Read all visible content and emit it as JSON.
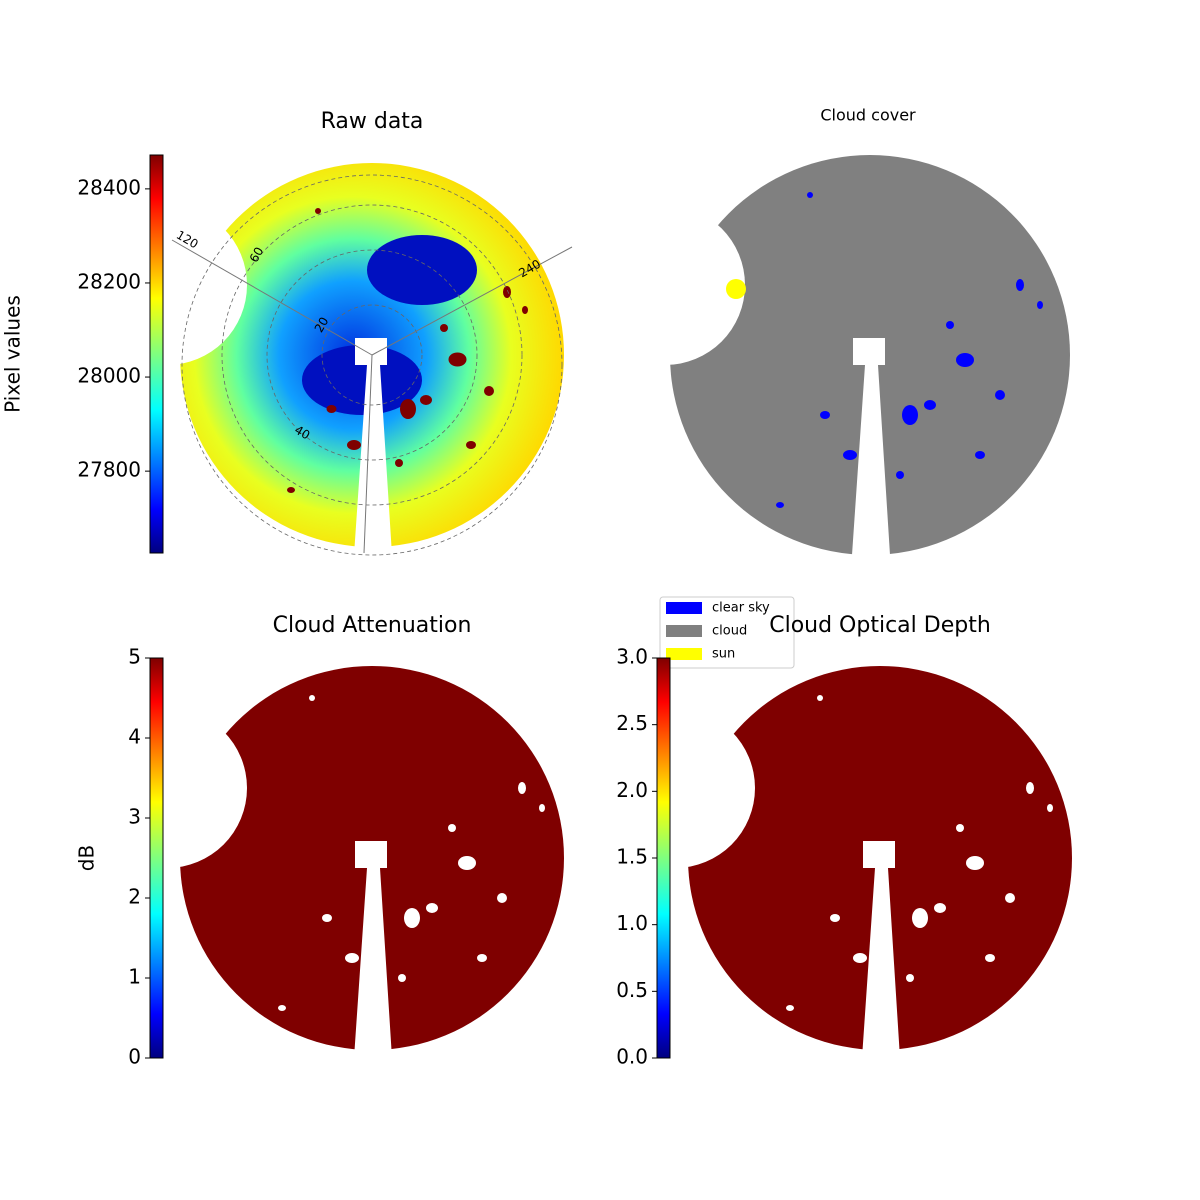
{
  "chart_data": [
    {
      "type": "image",
      "title": "Raw data",
      "colorbar": {
        "label": "Pixel values",
        "lim": [
          27626,
          28472
        ],
        "ticks": [
          27800,
          28000,
          28200,
          28400
        ],
        "cmap": "jet"
      },
      "annotations": [
        "120",
        "60",
        "240",
        "20",
        "40"
      ]
    },
    {
      "type": "image",
      "title": "Cloud cover",
      "series": [
        {
          "name": "clear sky",
          "color": "#0000ff"
        },
        {
          "name": "cloud",
          "color": "#808080"
        },
        {
          "name": "sun",
          "color": "#ffff00"
        }
      ]
    },
    {
      "type": "image",
      "title": "Cloud Attenuation",
      "colorbar": {
        "label": "dB",
        "lim": [
          0,
          5
        ],
        "ticks": [
          0,
          1,
          2,
          3,
          4,
          5
        ],
        "cmap": "jet"
      }
    },
    {
      "type": "image",
      "title": "Cloud Optical Depth",
      "colorbar": {
        "lim": [
          0,
          3
        ],
        "ticks": [
          {
            "value": 0,
            "label": "0.0"
          },
          {
            "value": 0.5,
            "label": "0.5"
          },
          {
            "value": 1,
            "label": "1.0"
          },
          {
            "value": 1.5,
            "label": "1.5"
          },
          {
            "value": 2,
            "label": "2.0"
          },
          {
            "value": 2.5,
            "label": "2.5"
          },
          {
            "value": 3,
            "label": "3.0"
          }
        ],
        "cmap": "jet"
      }
    }
  ]
}
